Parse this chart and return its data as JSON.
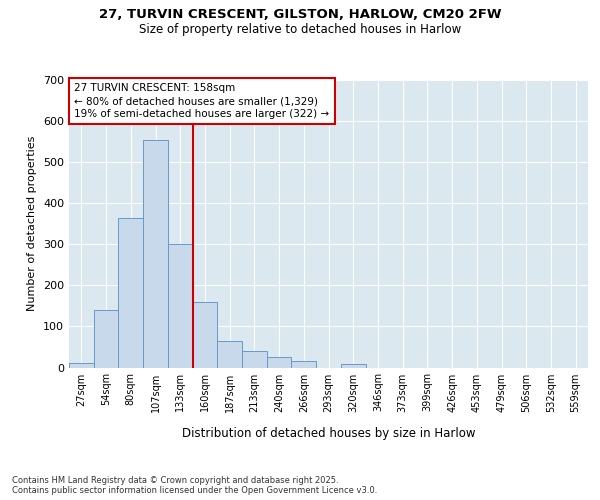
{
  "title_line1": "27, TURVIN CRESCENT, GILSTON, HARLOW, CM20 2FW",
  "title_line2": "Size of property relative to detached houses in Harlow",
  "xlabel": "Distribution of detached houses by size in Harlow",
  "ylabel": "Number of detached properties",
  "categories": [
    "27sqm",
    "54sqm",
    "80sqm",
    "107sqm",
    "133sqm",
    "160sqm",
    "187sqm",
    "213sqm",
    "240sqm",
    "266sqm",
    "293sqm",
    "320sqm",
    "346sqm",
    "373sqm",
    "399sqm",
    "426sqm",
    "453sqm",
    "479sqm",
    "506sqm",
    "532sqm",
    "559sqm"
  ],
  "values": [
    10,
    140,
    365,
    555,
    300,
    160,
    65,
    40,
    25,
    15,
    0,
    8,
    0,
    0,
    0,
    0,
    0,
    0,
    0,
    0,
    0
  ],
  "bar_color": "#c9d9ec",
  "bar_edge_color": "#6699cc",
  "property_line_bin_index": 5,
  "annotation_text": "27 TURVIN CRESCENT: 158sqm\n← 80% of detached houses are smaller (1,329)\n19% of semi-detached houses are larger (322) →",
  "annotation_box_color": "#ffffff",
  "annotation_box_edge": "#cc0000",
  "vline_color": "#cc0000",
  "background_color": "#dce8f0",
  "footer_text": "Contains HM Land Registry data © Crown copyright and database right 2025.\nContains public sector information licensed under the Open Government Licence v3.0.",
  "ylim": [
    0,
    700
  ],
  "yticks": [
    0,
    100,
    200,
    300,
    400,
    500,
    600,
    700
  ],
  "bar_width": 1.0
}
